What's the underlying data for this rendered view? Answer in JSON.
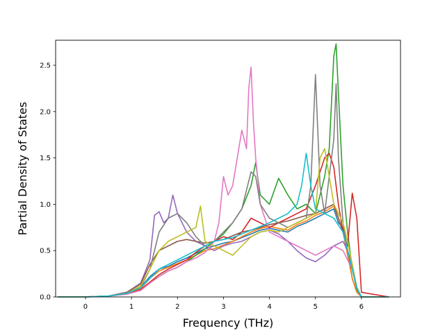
{
  "chart_data": {
    "type": "line",
    "xlabel": "Frequency (THz)",
    "ylabel": "Partial Density of States",
    "xlim": [
      -0.65,
      6.85
    ],
    "ylim": [
      0.0,
      2.77
    ],
    "xticks": [
      0,
      1,
      2,
      3,
      4,
      5,
      6
    ],
    "xtick_labels": [
      "0",
      "1",
      "2",
      "3",
      "4",
      "5",
      "6"
    ],
    "yticks": [
      0.0,
      0.5,
      1.0,
      1.5,
      2.0,
      2.5
    ],
    "ytick_labels": [
      "0.0",
      "0.5",
      "1.0",
      "1.5",
      "2.0",
      "2.5"
    ],
    "grid": false,
    "series": [
      {
        "color": "#1f77b4",
        "x": [
          -0.6,
          0,
          0.5,
          0.9,
          1.2,
          1.4,
          1.6,
          1.8,
          2.0,
          2.2,
          2.4,
          2.6,
          2.8,
          3.0,
          3.2,
          3.4,
          3.6,
          3.8,
          4.0,
          4.2,
          4.4,
          4.6,
          4.8,
          5.0,
          5.2,
          5.4,
          5.5,
          5.6,
          5.7,
          5.8,
          5.9,
          6.0,
          6.6
        ],
        "y": [
          0,
          0,
          0.01,
          0.04,
          0.1,
          0.22,
          0.3,
          0.33,
          0.38,
          0.42,
          0.47,
          0.52,
          0.55,
          0.58,
          0.6,
          0.64,
          0.68,
          0.72,
          0.74,
          0.72,
          0.7,
          0.76,
          0.8,
          0.85,
          0.9,
          0.95,
          0.8,
          0.75,
          0.5,
          0.2,
          0.05,
          0,
          0
        ]
      },
      {
        "color": "#ff7f0e",
        "x": [
          -0.6,
          0,
          0.5,
          0.9,
          1.2,
          1.4,
          1.6,
          1.8,
          2.0,
          2.2,
          2.4,
          2.6,
          2.8,
          3.0,
          3.2,
          3.4,
          3.6,
          3.8,
          4.0,
          4.2,
          4.4,
          4.6,
          4.8,
          5.0,
          5.2,
          5.4,
          5.5,
          5.6,
          5.7,
          5.8,
          5.9,
          6.0,
          6.6
        ],
        "y": [
          0,
          0,
          0.01,
          0.04,
          0.09,
          0.2,
          0.28,
          0.32,
          0.36,
          0.4,
          0.45,
          0.5,
          0.52,
          0.56,
          0.6,
          0.65,
          0.7,
          0.74,
          0.76,
          0.74,
          0.72,
          0.78,
          0.82,
          0.88,
          0.92,
          0.98,
          0.85,
          0.7,
          0.45,
          0.2,
          0.05,
          0,
          0
        ]
      },
      {
        "color": "#2ca02c",
        "x": [
          -0.6,
          0,
          0.5,
          0.9,
          1.2,
          1.4,
          1.6,
          1.8,
          2.0,
          2.2,
          2.4,
          2.6,
          2.8,
          3.0,
          3.2,
          3.4,
          3.6,
          3.7,
          3.8,
          4.0,
          4.2,
          4.4,
          4.6,
          4.8,
          5.0,
          5.2,
          5.3,
          5.4,
          5.45,
          5.5,
          5.6,
          5.7,
          5.8,
          5.9,
          6.0,
          6.6
        ],
        "y": [
          0,
          0,
          0.01,
          0.03,
          0.07,
          0.15,
          0.22,
          0.28,
          0.32,
          0.38,
          0.45,
          0.52,
          0.6,
          0.68,
          0.8,
          0.95,
          1.2,
          1.45,
          1.1,
          1.0,
          1.28,
          1.1,
          0.95,
          1.0,
          0.9,
          1.3,
          1.6,
          2.6,
          2.73,
          2.2,
          1.2,
          0.7,
          0.3,
          0.08,
          0,
          0
        ]
      },
      {
        "color": "#d62728",
        "x": [
          -0.6,
          0,
          0.5,
          0.9,
          1.2,
          1.4,
          1.6,
          1.8,
          2.0,
          2.2,
          2.4,
          2.6,
          2.8,
          3.0,
          3.2,
          3.4,
          3.6,
          3.8,
          4.0,
          4.2,
          4.4,
          4.6,
          4.8,
          5.0,
          5.2,
          5.3,
          5.4,
          5.5,
          5.6,
          5.7,
          5.8,
          5.9,
          6.0,
          6.6
        ],
        "y": [
          0,
          0,
          0.01,
          0.03,
          0.08,
          0.16,
          0.24,
          0.3,
          0.35,
          0.4,
          0.48,
          0.55,
          0.6,
          0.65,
          0.62,
          0.7,
          0.85,
          0.8,
          0.75,
          0.8,
          0.85,
          0.9,
          0.95,
          1.2,
          1.5,
          1.55,
          1.4,
          1.0,
          0.7,
          0.55,
          1.12,
          0.85,
          0.05,
          0
        ]
      },
      {
        "color": "#9467bd",
        "x": [
          -0.6,
          0,
          0.5,
          0.9,
          1.2,
          1.4,
          1.5,
          1.6,
          1.7,
          1.8,
          1.9,
          2.0,
          2.2,
          2.4,
          2.6,
          2.8,
          3.0,
          3.2,
          3.4,
          3.6,
          3.8,
          4.0,
          4.2,
          4.4,
          4.6,
          4.8,
          5.0,
          5.2,
          5.4,
          5.6,
          5.7,
          5.8,
          5.9,
          6.0,
          6.6
        ],
        "y": [
          0,
          0,
          0.01,
          0.05,
          0.15,
          0.4,
          0.88,
          0.92,
          0.8,
          0.85,
          1.1,
          0.9,
          0.7,
          0.6,
          0.55,
          0.5,
          0.55,
          0.58,
          0.6,
          0.65,
          0.7,
          0.72,
          0.68,
          0.6,
          0.5,
          0.42,
          0.38,
          0.45,
          0.55,
          0.6,
          0.5,
          0.35,
          0.1,
          0,
          0
        ]
      },
      {
        "color": "#8c564b",
        "x": [
          -0.6,
          0,
          0.5,
          0.9,
          1.2,
          1.4,
          1.6,
          1.8,
          2.0,
          2.2,
          2.4,
          2.6,
          2.8,
          3.0,
          3.2,
          3.4,
          3.6,
          3.8,
          4.0,
          4.2,
          4.4,
          4.6,
          4.8,
          5.0,
          5.2,
          5.4,
          5.6,
          5.7,
          5.8,
          5.9,
          6.0,
          6.6
        ],
        "y": [
          0,
          0,
          0.01,
          0.05,
          0.14,
          0.35,
          0.5,
          0.55,
          0.6,
          0.62,
          0.6,
          0.58,
          0.6,
          0.62,
          0.66,
          0.7,
          0.72,
          0.75,
          0.78,
          0.8,
          0.82,
          0.85,
          0.88,
          0.9,
          0.95,
          1.0,
          0.7,
          0.5,
          0.3,
          0.1,
          0,
          0
        ]
      },
      {
        "color": "#e377c2",
        "x": [
          -0.6,
          0,
          0.5,
          0.9,
          1.2,
          1.4,
          1.6,
          1.8,
          2.0,
          2.2,
          2.4,
          2.6,
          2.8,
          2.9,
          3.0,
          3.1,
          3.2,
          3.3,
          3.4,
          3.5,
          3.55,
          3.6,
          3.65,
          3.7,
          3.8,
          3.9,
          4.0,
          4.2,
          4.4,
          4.6,
          4.8,
          5.0,
          5.2,
          5.4,
          5.6,
          5.7,
          5.8,
          5.9,
          6.0,
          6.6
        ],
        "y": [
          0,
          0,
          0.01,
          0.03,
          0.07,
          0.15,
          0.22,
          0.28,
          0.32,
          0.38,
          0.42,
          0.48,
          0.6,
          0.8,
          1.3,
          1.1,
          1.2,
          1.5,
          1.8,
          1.6,
          2.25,
          2.48,
          1.9,
          1.5,
          1.0,
          0.85,
          0.7,
          0.65,
          0.6,
          0.55,
          0.5,
          0.45,
          0.5,
          0.55,
          0.5,
          0.4,
          0.3,
          0.1,
          0,
          0
        ]
      },
      {
        "color": "#7f7f7f",
        "x": [
          -0.6,
          0,
          0.5,
          0.9,
          1.2,
          1.4,
          1.6,
          1.8,
          2.0,
          2.2,
          2.4,
          2.6,
          2.8,
          3.0,
          3.2,
          3.4,
          3.6,
          3.7,
          3.8,
          4.0,
          4.2,
          4.4,
          4.6,
          4.8,
          4.9,
          5.0,
          5.05,
          5.1,
          5.2,
          5.4,
          5.45,
          5.5,
          5.6,
          5.7,
          5.8,
          5.9,
          6.0,
          6.6
        ],
        "y": [
          0,
          0,
          0.01,
          0.04,
          0.1,
          0.3,
          0.7,
          0.85,
          0.9,
          0.8,
          0.65,
          0.55,
          0.6,
          0.7,
          0.8,
          0.95,
          1.35,
          1.3,
          1.0,
          0.85,
          0.8,
          0.75,
          0.8,
          0.85,
          1.2,
          2.4,
          1.8,
          1.2,
          0.9,
          1.7,
          2.3,
          1.5,
          0.8,
          0.5,
          0.3,
          0.1,
          0,
          0
        ]
      },
      {
        "color": "#bcbd22",
        "x": [
          -0.6,
          0,
          0.5,
          0.9,
          1.2,
          1.4,
          1.6,
          1.8,
          2.0,
          2.2,
          2.4,
          2.5,
          2.6,
          2.8,
          3.0,
          3.2,
          3.4,
          3.6,
          3.8,
          4.0,
          4.2,
          4.4,
          4.6,
          4.8,
          5.0,
          5.1,
          5.2,
          5.3,
          5.4,
          5.6,
          5.7,
          5.8,
          5.9,
          6.0,
          6.6
        ],
        "y": [
          0,
          0,
          0.01,
          0.04,
          0.12,
          0.3,
          0.5,
          0.6,
          0.65,
          0.7,
          0.75,
          0.98,
          0.6,
          0.55,
          0.5,
          0.45,
          0.55,
          0.65,
          0.7,
          0.72,
          0.7,
          0.75,
          0.8,
          0.85,
          0.9,
          1.5,
          1.6,
          1.3,
          1.0,
          0.8,
          0.6,
          0.35,
          0.1,
          0,
          0
        ]
      },
      {
        "color": "#17becf",
        "x": [
          -0.6,
          0,
          0.5,
          0.9,
          1.2,
          1.4,
          1.6,
          1.8,
          2.0,
          2.2,
          2.4,
          2.6,
          2.8,
          3.0,
          3.2,
          3.4,
          3.6,
          3.8,
          4.0,
          4.2,
          4.4,
          4.6,
          4.7,
          4.8,
          4.9,
          5.0,
          5.2,
          5.4,
          5.6,
          5.7,
          5.8,
          5.9,
          6.0,
          6.6
        ],
        "y": [
          0,
          0,
          0.01,
          0.04,
          0.1,
          0.2,
          0.3,
          0.35,
          0.4,
          0.45,
          0.5,
          0.55,
          0.6,
          0.62,
          0.64,
          0.68,
          0.72,
          0.76,
          0.8,
          0.85,
          0.9,
          1.0,
          1.2,
          1.55,
          1.2,
          0.95,
          0.9,
          0.85,
          0.7,
          0.5,
          0.3,
          0.1,
          0,
          0
        ]
      }
    ]
  }
}
